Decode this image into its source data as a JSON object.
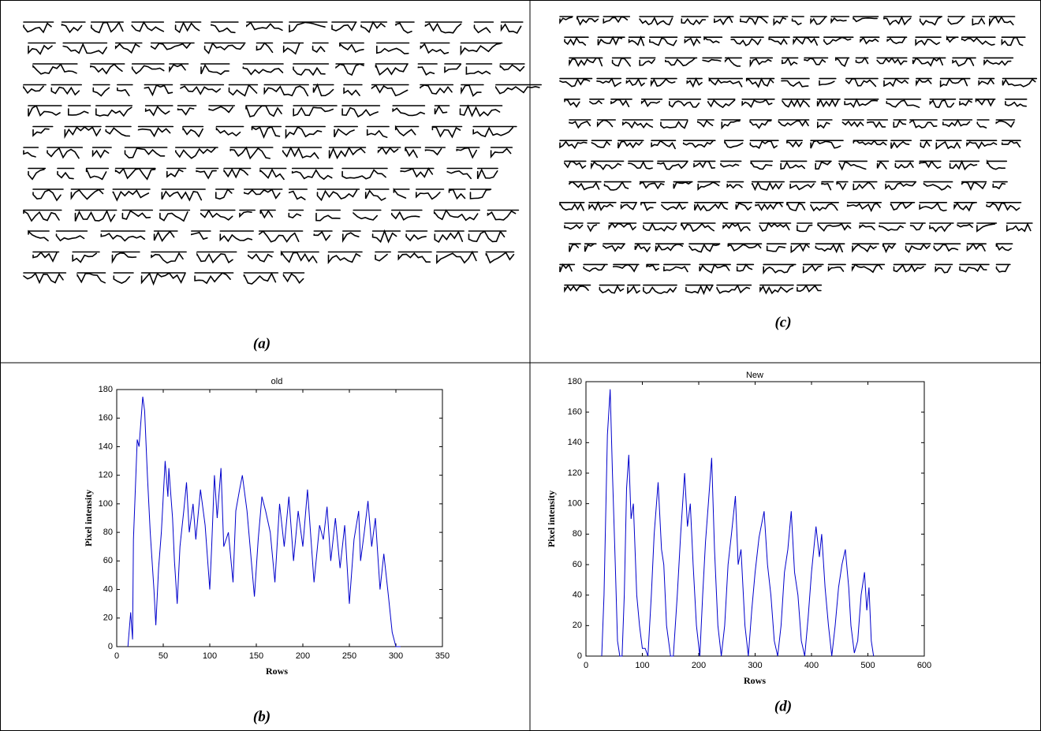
{
  "panels": {
    "labels": [
      "(a)",
      "(b)",
      "(c)",
      "(d)"
    ]
  },
  "chart_data": [
    {
      "type": "line",
      "title": "old",
      "x_label": "Rows",
      "y_label": "Pixel intensity",
      "xlim": [
        0,
        350
      ],
      "xticks": [
        0,
        50,
        100,
        150,
        200,
        250,
        300,
        350
      ],
      "ylim": [
        0,
        180
      ],
      "yticks": [
        0,
        20,
        40,
        60,
        80,
        100,
        120,
        140,
        160,
        180
      ],
      "x": [
        12,
        15,
        17,
        18,
        22,
        24,
        28,
        30,
        33,
        36,
        40,
        42,
        45,
        48,
        52,
        55,
        56,
        60,
        62,
        65,
        68,
        72,
        75,
        78,
        82,
        85,
        90,
        95,
        100,
        102,
        105,
        108,
        112,
        115,
        120,
        125,
        128,
        132,
        135,
        140,
        148,
        152,
        156,
        160,
        165,
        170,
        175,
        180,
        185,
        190,
        195,
        200,
        205,
        212,
        218,
        222,
        226,
        230,
        235,
        240,
        245,
        250,
        255,
        260,
        262,
        266,
        270,
        274,
        278,
        283,
        287,
        292,
        296,
        300,
        305
      ],
      "series": [
        {
          "color": "#0000cc",
          "values": [
            0,
            24,
            5,
            75,
            145,
            140,
            175,
            165,
            120,
            80,
            40,
            15,
            55,
            80,
            130,
            105,
            125,
            90,
            60,
            30,
            70,
            95,
            115,
            80,
            100,
            75,
            110,
            85,
            40,
            70,
            120,
            90,
            125,
            70,
            80,
            45,
            95,
            110,
            120,
            95,
            35,
            75,
            105,
            95,
            80,
            45,
            100,
            70,
            105,
            60,
            95,
            70,
            110,
            45,
            85,
            75,
            98,
            60,
            90,
            55,
            85,
            30,
            75,
            95,
            60,
            80,
            102,
            70,
            90,
            40,
            65,
            35,
            10,
            0,
            0
          ]
        }
      ]
    },
    {
      "type": "line",
      "title": "New",
      "x_label": "Rows",
      "y_label": "Pixel intensity",
      "xlim": [
        0,
        600
      ],
      "xticks": [
        0,
        100,
        200,
        300,
        400,
        500,
        600
      ],
      "ylim": [
        0,
        180
      ],
      "yticks": [
        0,
        20,
        40,
        60,
        80,
        100,
        120,
        140,
        160,
        180
      ],
      "x": [
        28,
        32,
        38,
        43,
        47,
        52,
        56,
        60,
        64,
        68,
        72,
        76,
        80,
        84,
        90,
        95,
        100,
        105,
        110,
        116,
        121,
        128,
        134,
        138,
        143,
        150,
        155,
        162,
        168,
        175,
        180,
        185,
        190,
        196,
        202,
        207,
        212,
        217,
        223,
        228,
        234,
        240,
        246,
        252,
        258,
        265,
        270,
        275,
        282,
        288,
        294,
        300,
        307,
        316,
        322,
        328,
        334,
        340,
        346,
        352,
        358,
        364,
        370,
        376,
        382,
        388,
        394,
        400,
        408,
        414,
        418,
        424,
        430,
        436,
        442,
        448,
        454,
        460,
        466,
        470,
        476,
        482,
        488,
        494,
        498,
        502,
        506,
        510
      ],
      "series": [
        {
          "color": "#0000cc",
          "values": [
            0,
            40,
            145,
            175,
            120,
            60,
            10,
            0,
            0,
            40,
            110,
            132,
            90,
            100,
            40,
            20,
            5,
            5,
            0,
            40,
            80,
            114,
            70,
            60,
            20,
            0,
            0,
            40,
            80,
            120,
            85,
            100,
            60,
            20,
            0,
            40,
            75,
            100,
            130,
            70,
            20,
            0,
            20,
            60,
            80,
            105,
            60,
            70,
            20,
            0,
            30,
            55,
            78,
            95,
            60,
            40,
            10,
            0,
            20,
            55,
            70,
            95,
            55,
            40,
            10,
            0,
            25,
            55,
            85,
            65,
            80,
            45,
            20,
            0,
            20,
            45,
            60,
            70,
            45,
            20,
            2,
            10,
            40,
            55,
            30,
            45,
            10,
            0
          ]
        }
      ]
    }
  ]
}
